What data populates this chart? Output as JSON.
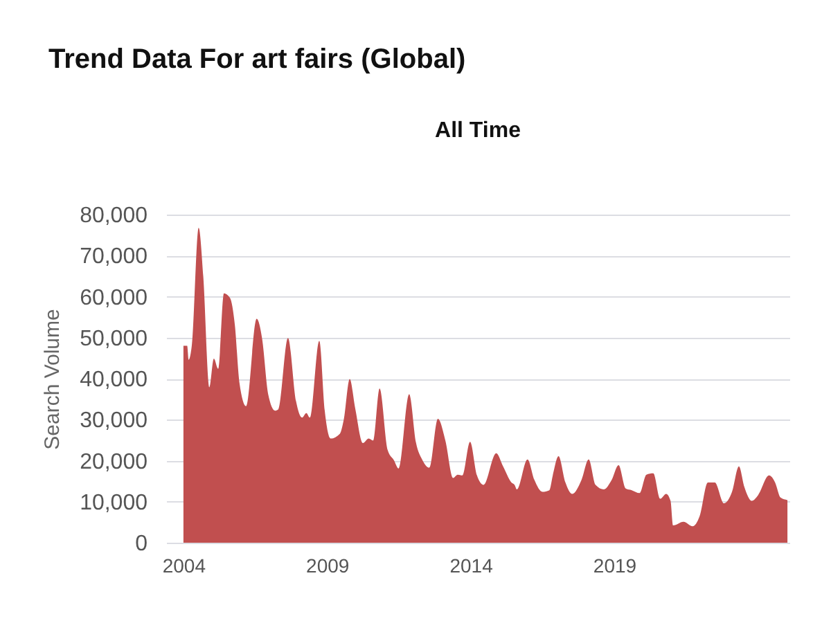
{
  "chart_data": {
    "type": "area",
    "title": "Trend Data For art fairs (Global)",
    "subtitle": "All Time",
    "ylabel": "Search Volume",
    "x": [
      2004.0,
      2004.13,
      2004.18,
      2004.29,
      2004.53,
      2004.69,
      2004.9,
      2005.06,
      2005.21,
      2005.41,
      2005.62,
      2005.79,
      2005.95,
      2006.18,
      2006.55,
      2006.74,
      2006.95,
      2007.19,
      2007.3,
      2007.64,
      2007.92,
      2008.13,
      2008.28,
      2008.4,
      2008.73,
      2008.92,
      2009.13,
      2009.45,
      2009.58,
      2009.79,
      2009.98,
      2010.25,
      2010.45,
      2010.61,
      2010.83,
      2011.11,
      2011.33,
      2011.49,
      2011.86,
      2012.1,
      2012.31,
      2012.56,
      2012.86,
      2013.12,
      2013.39,
      2013.55,
      2013.71,
      2013.98,
      2014.22,
      2014.45,
      2014.89,
      2015.13,
      2015.42,
      2015.53,
      2015.61,
      2015.98,
      2016.22,
      2016.5,
      2016.74,
      2016.86,
      2017.06,
      2017.3,
      2017.54,
      2017.86,
      2018.11,
      2018.35,
      2018.64,
      2018.91,
      2019.15,
      2019.4,
      2019.61,
      2019.88,
      2020.12,
      2020.36,
      2020.6,
      2020.81,
      2020.96,
      2021.05,
      2021.41,
      2021.73,
      2021.97,
      2022.26,
      2022.5,
      2022.82,
      2023.1,
      2023.34,
      2023.53,
      2023.79,
      2024.01,
      2024.39,
      2024.6,
      2024.79,
      2025.03
    ],
    "values": [
      48000,
      48000,
      44600,
      48000,
      76800,
      65000,
      37900,
      44900,
      42400,
      60800,
      59700,
      53100,
      39000,
      33300,
      54600,
      49700,
      36200,
      32200,
      32500,
      49900,
      34500,
      30500,
      31600,
      30500,
      49200,
      32200,
      25400,
      26600,
      29900,
      39900,
      32800,
      24300,
      25400,
      24900,
      37600,
      22600,
      20100,
      18100,
      36200,
      24300,
      20300,
      18300,
      30200,
      24900,
      15800,
      16600,
      16400,
      24600,
      16400,
      14100,
      21800,
      18600,
      14700,
      14100,
      13000,
      20300,
      15300,
      12400,
      12800,
      16400,
      21100,
      14700,
      11900,
      15300,
      20300,
      14100,
      13000,
      15300,
      18900,
      13200,
      12800,
      12100,
      16600,
      16900,
      10700,
      11900,
      10200,
      4200,
      5100,
      4000,
      6400,
      14700,
      14700,
      9600,
      12400,
      18600,
      13600,
      10200,
      11600,
      16400,
      14700,
      11000,
      10400
    ],
    "color": "#c14f4f",
    "xlim": [
      2003.4,
      2025.1
    ],
    "ylim": [
      0,
      80000
    ],
    "xticks": [
      2004,
      2009,
      2014,
      2019
    ],
    "yticks": [
      0,
      {
        "value": 10000,
        "label": "10,000"
      },
      {
        "value": 20000,
        "label": "20,000"
      },
      {
        "value": 30000,
        "label": "30,000"
      },
      {
        "value": 40000,
        "label": "40,000"
      },
      {
        "value": 50000,
        "label": "50,000"
      },
      {
        "value": 60000,
        "label": "60,000"
      },
      {
        "value": 70000,
        "label": "70,000"
      },
      {
        "value": 80000,
        "label": "80,000"
      }
    ],
    "grid": "y"
  }
}
